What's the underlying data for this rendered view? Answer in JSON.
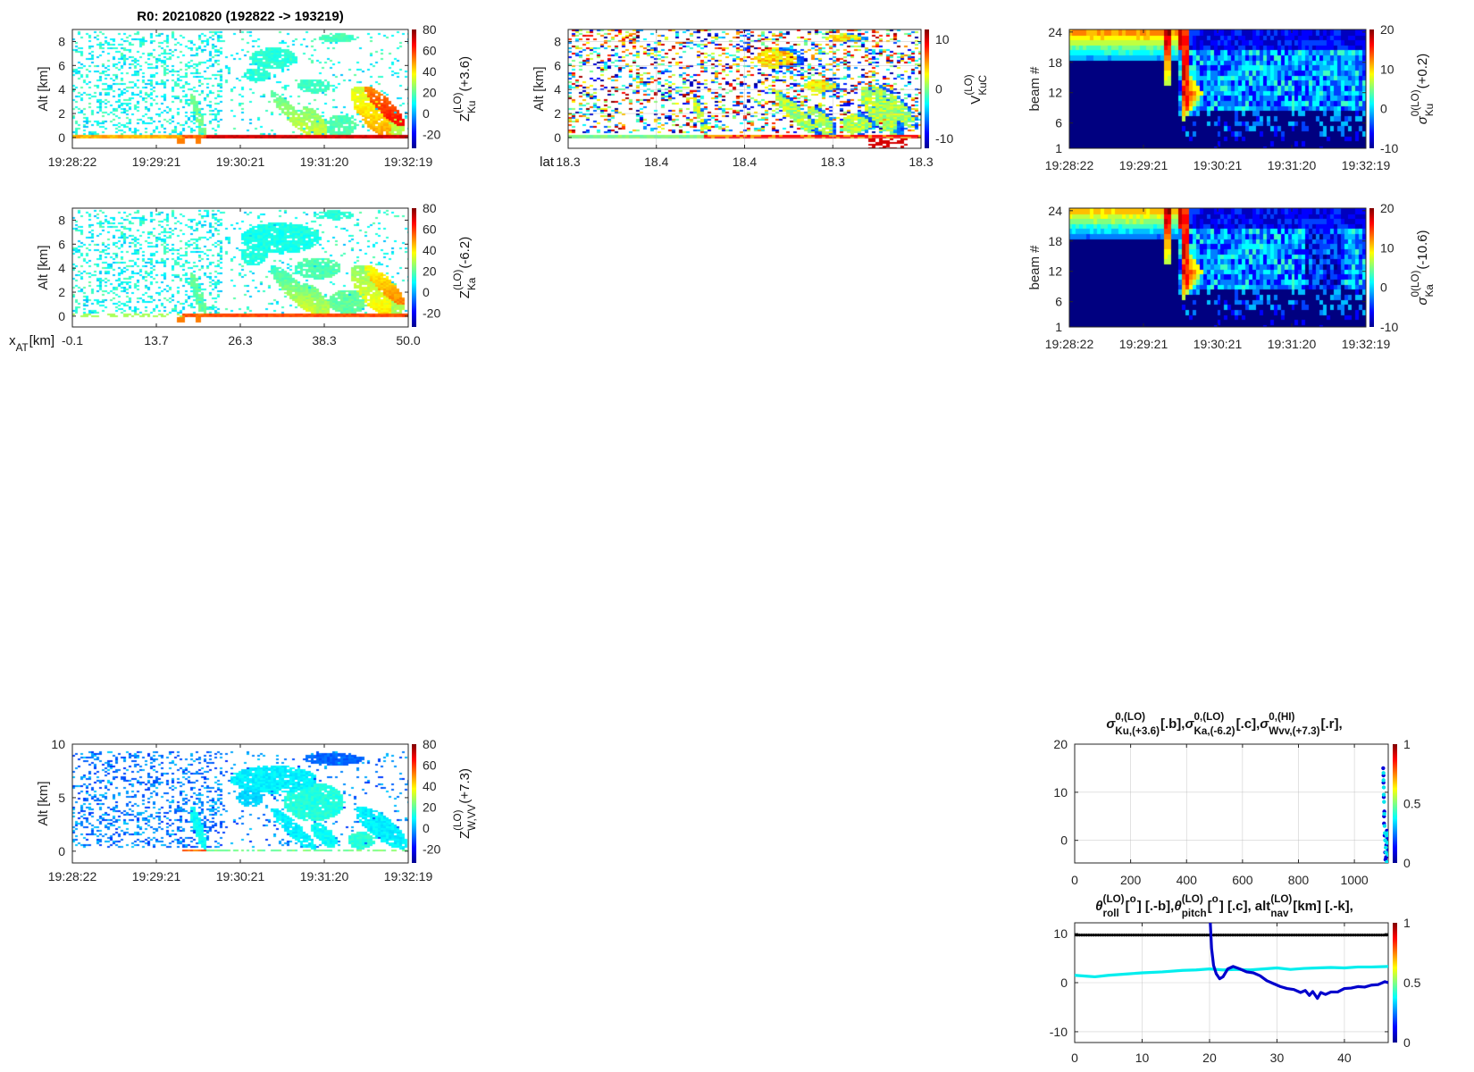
{
  "figure_title": "R0:  20210820 (192822 -> 193219)",
  "chart_data": [
    {
      "id": "ku",
      "type": "heatmap",
      "ylabel": "Alt [km]",
      "xticklabels": [
        "19:28:22",
        "19:29:21",
        "19:30:21",
        "19:31:20",
        "19:32:19"
      ],
      "yticks": [
        0,
        2,
        4,
        6,
        8
      ],
      "ylim": [
        -0.9,
        9.0
      ],
      "clim": [
        -33,
        80
      ],
      "cbar_ticks": [
        80,
        60,
        40,
        20,
        0,
        -20
      ],
      "cbar_label": [
        "Z",
        {
          "sup": "(LO)",
          "sub": "Ku"
        },
        " (+3.6)"
      ]
    },
    {
      "id": "ka",
      "type": "heatmap",
      "ylabel": "Alt [km]",
      "xlabel": [
        "x",
        {
          "sub": "AT"
        },
        " [km]"
      ],
      "xticklabels": [
        "-0.1",
        "13.7",
        "26.3",
        "38.3",
        "50.0"
      ],
      "yticks": [
        0,
        2,
        4,
        6,
        8
      ],
      "ylim": [
        -0.9,
        9.0
      ],
      "clim": [
        -33,
        80
      ],
      "cbar_ticks": [
        80,
        60,
        40,
        20,
        0,
        -20
      ],
      "cbar_label": [
        "Z",
        {
          "sup": "(LO)",
          "sub": "Ka"
        },
        " (-6.2)"
      ]
    },
    {
      "id": "vel",
      "type": "heatmap",
      "ylabel": "Alt [km]",
      "xlabel": [
        "lat"
      ],
      "xticklabels": [
        "18.3",
        "18.4",
        "18.4",
        "18.3",
        "18.3"
      ],
      "yticks": [
        0,
        2,
        4,
        6,
        8
      ],
      "ylim": [
        -0.9,
        9.0
      ],
      "grid": true,
      "clim": [
        -12,
        12
      ],
      "cbar_ticks": [
        10,
        0,
        -10
      ],
      "cbar_label": [
        "V",
        {
          "sup": "(LO)",
          "sub": "KuC"
        }
      ]
    },
    {
      "id": "bku",
      "type": "heatmap",
      "ylabel": "beam #",
      "xticklabels": [
        "19:28:22",
        "19:29:21",
        "19:30:21",
        "19:31:20",
        "19:32:19"
      ],
      "yticks": [
        1,
        6,
        12,
        18,
        24
      ],
      "ylim": [
        1,
        24.5
      ],
      "clim": [
        -10,
        20
      ],
      "cbar_ticks": [
        20,
        10,
        0,
        -10
      ],
      "cbar_label": [
        "σ",
        {
          "sup": "0(LO)",
          "sub": "Ku"
        },
        " (+0.2)"
      ]
    },
    {
      "id": "bka",
      "type": "heatmap",
      "ylabel": "beam #",
      "xticklabels": [
        "19:28:22",
        "19:29:21",
        "19:30:21",
        "19:31:20",
        "19:32:19"
      ],
      "yticks": [
        1,
        6,
        12,
        18,
        24
      ],
      "ylim": [
        1,
        24.5
      ],
      "clim": [
        -10,
        20
      ],
      "cbar_ticks": [
        20,
        10,
        0,
        -10
      ],
      "cbar_label": [
        "σ",
        {
          "sup": "0(LO)",
          "sub": "Ka"
        },
        " (-10.6)"
      ]
    },
    {
      "id": "w",
      "type": "heatmap",
      "ylabel": "Alt [km]",
      "xticklabels": [
        "19:28:22",
        "19:29:21",
        "19:30:21",
        "19:31:20",
        "19:32:19"
      ],
      "yticks": [
        0,
        5,
        10
      ],
      "ylim": [
        -1.1,
        10
      ],
      "clim": [
        -33,
        80
      ],
      "cbar_ticks": [
        80,
        60,
        40,
        20,
        0,
        -20
      ],
      "cbar_label": [
        "Z",
        {
          "sup": "(LO)",
          "sub": "W,VV"
        },
        " (+7.3)"
      ]
    },
    {
      "id": "sig",
      "type": "scatter",
      "title": [
        "σ",
        {
          "sup": "0,(LO)",
          "sub": "Ku,(+3.6)"
        },
        " [.b],  ",
        "σ",
        {
          "sup": "0,(LO)",
          "sub": "Ka,(-6.2)"
        },
        " [.c],  ",
        "σ",
        {
          "sup": "0,(HI)",
          "sub": "Wvv,(+7.3)"
        },
        " [.r],"
      ],
      "xlim": [
        0,
        1121
      ],
      "ylim": [
        -4.7,
        20
      ],
      "grid": true,
      "xticks": [
        0,
        200,
        400,
        600,
        800,
        1000
      ],
      "yticks": [
        0,
        10,
        20
      ],
      "cbar_ticks": [
        1,
        0.5,
        0
      ],
      "clim": [
        0,
        1
      ],
      "series": [
        {
          "name": "Ku",
          "color": "#0000dd",
          "points": [
            [
              1103,
              15
            ],
            [
              1104,
              13.5
            ],
            [
              1104,
              12
            ],
            [
              1105,
              9
            ],
            [
              1107,
              6
            ],
            [
              1106,
              5
            ],
            [
              1106,
              3.5
            ],
            [
              1108,
              1
            ],
            [
              1110,
              -2.5
            ],
            [
              1112,
              0
            ],
            [
              1114,
              -1
            ],
            [
              1116,
              2
            ],
            [
              1113,
              -3.5
            ],
            [
              1118,
              0.5
            ],
            [
              1120,
              -2
            ],
            [
              1111,
              -4
            ]
          ]
        },
        {
          "name": "Ka",
          "color": "#00e5ee",
          "points": [
            [
              1104,
              14
            ],
            [
              1104,
              12.5
            ],
            [
              1105,
              11
            ],
            [
              1105,
              9.5
            ],
            [
              1106,
              8
            ],
            [
              1107,
              5.5
            ],
            [
              1108,
              3
            ],
            [
              1109,
              1.5
            ],
            [
              1110,
              0
            ],
            [
              1112,
              -1.5
            ],
            [
              1113,
              -2.5
            ],
            [
              1115,
              1
            ],
            [
              1117,
              -0.5
            ],
            [
              1119,
              1.5
            ],
            [
              1116,
              -4.5
            ],
            [
              1120,
              -3
            ]
          ]
        }
      ]
    },
    {
      "id": "att",
      "type": "line",
      "title": [
        "θ",
        {
          "sup": "(LO)",
          "sub": "roll"
        },
        " [",
        {
          "sup": "o"
        },
        "] [.-b],  ",
        "θ",
        {
          "sup": "(LO)",
          "sub": "pitch"
        },
        " [",
        {
          "sup": "o"
        },
        "] [.c],  alt",
        {
          "sup": "(LO)",
          "sub": "nav"
        },
        " [km] [.-k],"
      ],
      "xlim": [
        0,
        46.5
      ],
      "ylim": [
        -12.2,
        12.2
      ],
      "grid": true,
      "xticks": [
        0,
        10,
        20,
        30,
        40
      ],
      "yticks": [
        -10,
        0,
        10
      ],
      "cbar_ticks": [
        1,
        0.5,
        0
      ],
      "clim": [
        0,
        1
      ],
      "series": [
        {
          "name": "alt_nav",
          "color": "#000000",
          "x": [
            0,
            46.5
          ],
          "y": [
            9.7,
            9.7
          ]
        },
        {
          "name": "pitch",
          "color": "#00eeee",
          "x": [
            0,
            2,
            3,
            5,
            8,
            10,
            13,
            16,
            18,
            20,
            22,
            24,
            26,
            28,
            30,
            32,
            34,
            36,
            38,
            40,
            42,
            44,
            46.5
          ],
          "y": [
            1.5,
            1.3,
            1.2,
            1.5,
            1.8,
            2.0,
            2.2,
            2.5,
            2.6,
            2.8,
            2.6,
            2.7,
            2.6,
            2.8,
            3.0,
            2.7,
            2.9,
            3.0,
            3.1,
            3.0,
            3.2,
            3.2,
            3.3
          ]
        },
        {
          "name": "roll",
          "color": "#0000cc",
          "x": [
            20.1,
            20.3,
            20.6,
            21,
            21.5,
            22,
            22.7,
            23.5,
            24.5,
            25.5,
            26.5,
            27.5,
            28.5,
            29.5,
            30.5,
            31.5,
            32.5,
            33.5,
            34.2,
            34.8,
            35.3,
            36,
            36.5,
            37.2,
            38,
            39,
            40,
            41,
            42,
            43,
            44,
            45,
            46,
            46.5
          ],
          "y": [
            12.5,
            7,
            3.5,
            1.8,
            0.8,
            1.2,
            2.8,
            3.3,
            2.8,
            2.2,
            2.0,
            1.4,
            0.4,
            -0.2,
            -0.8,
            -1.2,
            -1.4,
            -2.0,
            -1.6,
            -2.6,
            -1.8,
            -3.2,
            -2.0,
            -2.4,
            -1.9,
            -1.9,
            -1.2,
            -1.1,
            -0.8,
            -0.9,
            -0.5,
            -0.4,
            0.2,
            0.0
          ]
        }
      ]
    }
  ]
}
